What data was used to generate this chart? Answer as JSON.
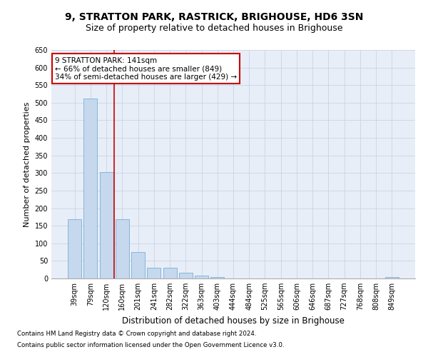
{
  "title": "9, STRATTON PARK, RASTRICK, BRIGHOUSE, HD6 3SN",
  "subtitle": "Size of property relative to detached houses in Brighouse",
  "xlabel": "Distribution of detached houses by size in Brighouse",
  "ylabel": "Number of detached properties",
  "categories": [
    "39sqm",
    "79sqm",
    "120sqm",
    "160sqm",
    "201sqm",
    "241sqm",
    "282sqm",
    "322sqm",
    "363sqm",
    "403sqm",
    "444sqm",
    "484sqm",
    "525sqm",
    "565sqm",
    "606sqm",
    "646sqm",
    "687sqm",
    "727sqm",
    "768sqm",
    "808sqm",
    "849sqm"
  ],
  "values": [
    168,
    511,
    303,
    168,
    75,
    30,
    30,
    16,
    8,
    5,
    0,
    0,
    0,
    0,
    0,
    0,
    0,
    0,
    0,
    0,
    5
  ],
  "bar_color": "#c5d8ed",
  "bar_edge_color": "#7bafd4",
  "grid_color": "#c8d4e3",
  "bg_color": "#e8eef8",
  "vline_x": 2.5,
  "annotation_text": "9 STRATTON PARK: 141sqm\n← 66% of detached houses are smaller (849)\n34% of semi-detached houses are larger (429) →",
  "annotation_box_color": "#ffffff",
  "annotation_box_edge_color": "#cc0000",
  "ylim": [
    0,
    650
  ],
  "yticks": [
    0,
    50,
    100,
    150,
    200,
    250,
    300,
    350,
    400,
    450,
    500,
    550,
    600,
    650
  ],
  "footer_line1": "Contains HM Land Registry data © Crown copyright and database right 2024.",
  "footer_line2": "Contains public sector information licensed under the Open Government Licence v3.0.",
  "title_fontsize": 10,
  "subtitle_fontsize": 9,
  "tick_fontsize": 7,
  "xlabel_fontsize": 8.5,
  "ylabel_fontsize": 8
}
